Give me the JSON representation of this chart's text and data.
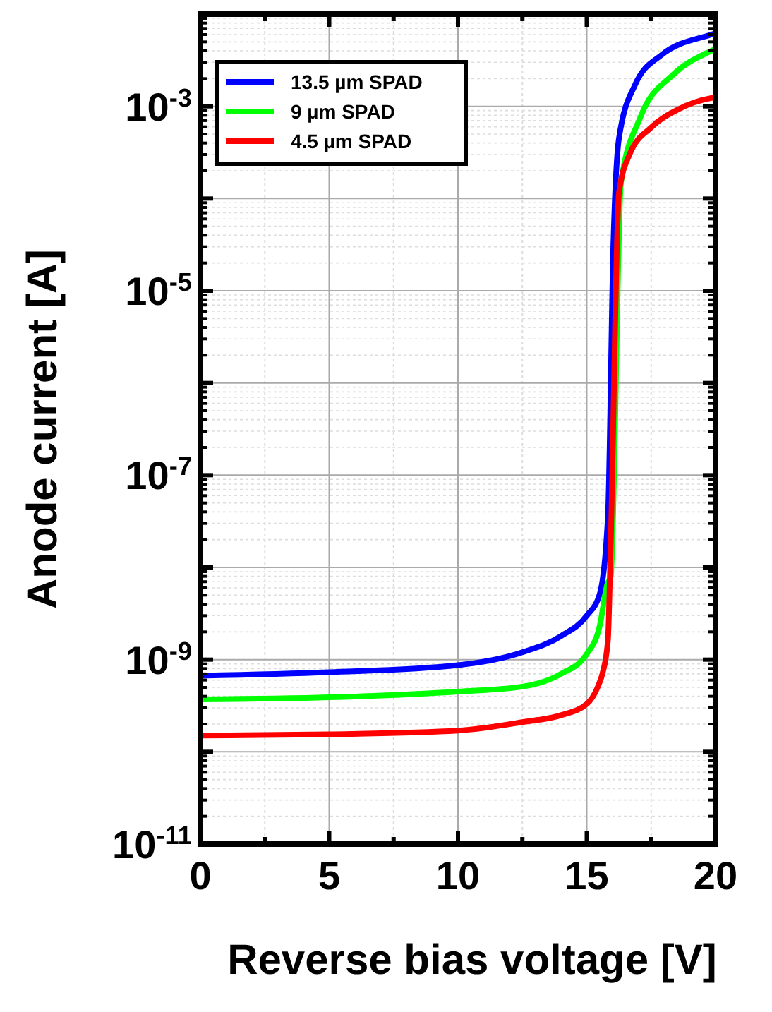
{
  "chart_data": {
    "type": "line",
    "xlabel": "Reverse bias voltage [V]",
    "ylabel": "Anode current [A]",
    "log": "y",
    "xlim": [
      0,
      20
    ],
    "ylim": [
      1e-11,
      0.01
    ],
    "xticks": [
      0,
      {
        "value": 2.5,
        "label": null
      },
      5,
      {
        "value": 7.5,
        "label": null
      },
      10,
      {
        "value": 12.5,
        "label": null
      },
      15,
      {
        "value": 17.5,
        "label": null
      },
      20
    ],
    "yticks": [
      {
        "value": 1e-11,
        "label": "10$^{-11}$"
      },
      {
        "value": 1e-10,
        "label": null
      },
      {
        "value": 1e-09,
        "label": "10$^{-9}$"
      },
      {
        "value": 1e-08,
        "label": null
      },
      {
        "value": 1e-07,
        "label": "10$^{-7}$"
      },
      {
        "value": 1e-06,
        "label": null
      },
      {
        "value": 1e-05,
        "label": "10$^{-5}$"
      },
      {
        "value": 0.0001,
        "label": null
      },
      {
        "value": 0.001,
        "label": "10$^{-3}$"
      },
      {
        "value": 0.01,
        "label": null
      }
    ],
    "grid": true,
    "legend": "top left",
    "marker": "none",
    "line_style": "solid",
    "series": [
      {
        "name": "13.5 µm SPAD",
        "color": "#0000ff",
        "x": [
          0,
          5,
          10,
          12.5,
          14,
          15,
          15.5,
          15.82,
          16.03,
          16.25,
          16.87,
          17.9,
          19.84,
          20
        ],
        "values": [
          6.7e-10,
          7.3e-10,
          8.7e-10,
          1.2e-09,
          1.8e-09,
          3e-09,
          5.1e-09,
          3.5e-08,
          3e-05,
          0.00045,
          0.0017,
          0.0036,
          0.006,
          0.0062
        ]
      },
      {
        "name": "9 µm SPAD",
        "color": "#00ff00",
        "x": [
          0,
          5,
          10,
          12.5,
          14,
          15,
          15.5,
          15.8,
          15.93,
          16.33,
          17.08,
          18.35,
          19.84,
          20
        ],
        "values": [
          3.7e-10,
          3.9e-10,
          4.5e-10,
          5.1e-10,
          7e-10,
          1.15e-09,
          2.3e-09,
          6.6e-09,
          8e-09,
          0.00015,
          0.00076,
          0.0022,
          0.004,
          0.0042
        ]
      },
      {
        "name": "4.5 µm SPAD",
        "color": "#ff0000",
        "x": [
          0,
          5,
          10,
          12.5,
          14,
          15,
          15.42,
          15.6,
          15.82,
          15.93,
          16.25,
          16.66,
          17.5,
          18.56,
          19.84,
          20
        ],
        "values": [
          1.5e-10,
          1.55e-10,
          1.7e-10,
          2.1e-10,
          2.5e-10,
          3.3e-10,
          5e-10,
          6.9e-10,
          1.6e-09,
          1.8e-08,
          0.000115,
          0.0003,
          0.00059,
          0.00093,
          0.00123,
          0.00125
        ]
      }
    ]
  }
}
